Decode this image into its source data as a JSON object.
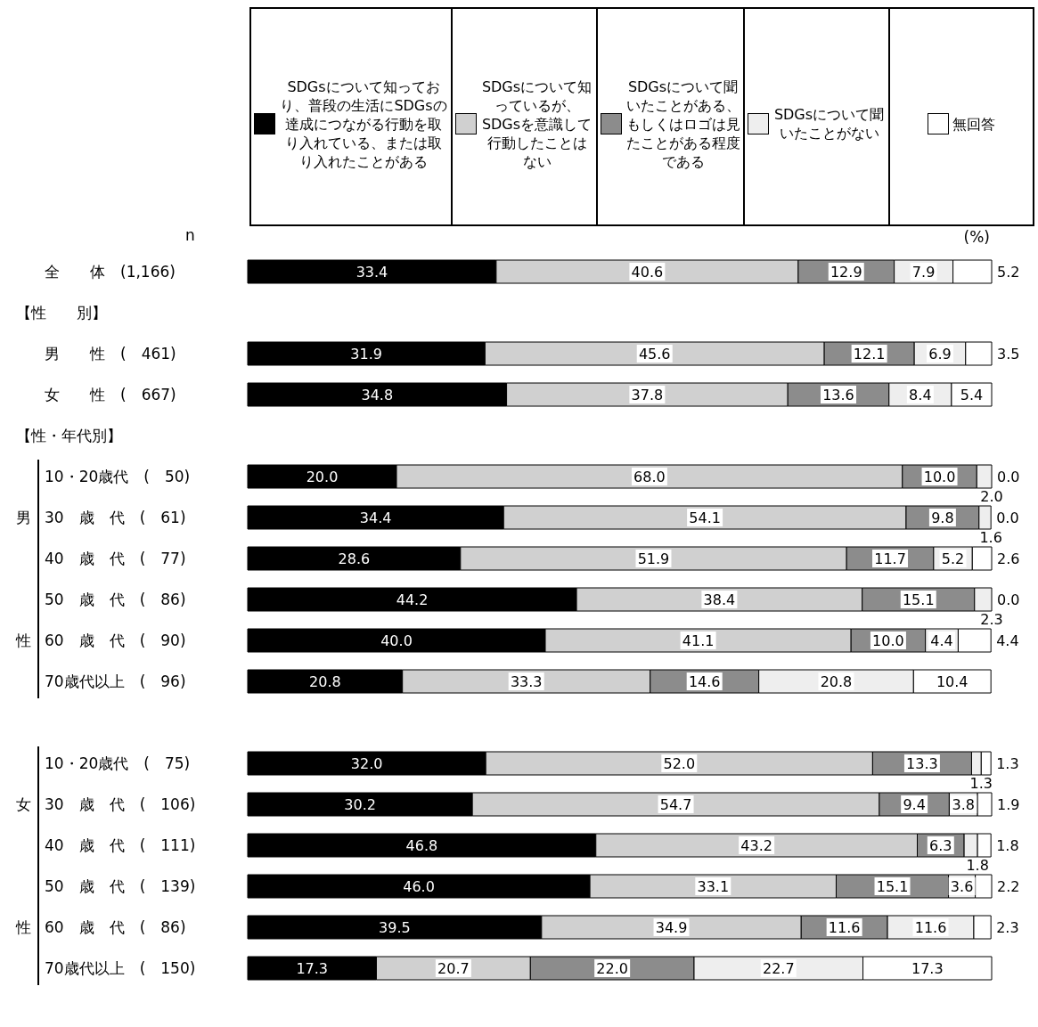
{
  "chart_data": {
    "type": "bar",
    "orientation": "horizontal",
    "stacked": true,
    "legend": "top",
    "categories": [
      "全　　体　(1,166)",
      null,
      "男　　性　(　461)",
      "女　　性　(　667)",
      null,
      "10・20歳代　(　50)",
      "30　歳　代　(　61)",
      "40　歳　代　(　77)",
      "50　歳　代　(　86)",
      "60　歳　代　(　90)",
      "70歳代以上　(　96)",
      null,
      "10・20歳代　(　75)",
      "30　歳　代　(　106)",
      "40　歳　代　(　111)",
      "50　歳　代　(　139)",
      "60　歳　代　(　86)",
      "70歳代以上　(　150)"
    ],
    "series": [
      {
        "name": "SDGsについて知っており、普段の生活にSDGsの達成につながる行動を取り入れている、または取り入れたことがある",
        "color": "#000000",
        "values": [
          33.4,
          null,
          31.9,
          34.8,
          null,
          20.0,
          34.4,
          28.6,
          44.2,
          40.0,
          20.8,
          null,
          32.0,
          30.2,
          46.8,
          46.0,
          39.5,
          17.3
        ],
        "value_labels": [
          "33.4",
          null,
          "31.9",
          "34.8",
          null,
          "20.0",
          "34.4",
          "28.6",
          "44.2",
          "40.0",
          "20.8",
          null,
          "32.0",
          "30.2",
          "46.8",
          "46.0",
          "39.5",
          "17.3"
        ]
      },
      {
        "name": "SDGsについて知っているが、SDGsを意識して行動したことはない",
        "color": "#d0d0d0",
        "values": [
          40.6,
          null,
          45.6,
          37.8,
          null,
          68.0,
          54.1,
          51.9,
          38.4,
          41.1,
          33.3,
          null,
          52.0,
          54.7,
          43.2,
          33.1,
          34.9,
          20.7
        ],
        "value_labels": [
          "40.6",
          null,
          "45.6",
          "37.8",
          null,
          "68.0",
          "54.1",
          "51.9",
          "38.4",
          "41.1",
          "33.3",
          null,
          "52.0",
          "54.7",
          "43.2",
          "33.1",
          "34.9",
          "20.7"
        ]
      },
      {
        "name": "SDGsについて聞いたことがある、もしくはロゴは見たことがある程度である",
        "color": "#8c8c8c",
        "values": [
          12.9,
          null,
          12.1,
          13.6,
          null,
          10.0,
          9.8,
          11.7,
          15.1,
          10.0,
          14.6,
          null,
          13.3,
          9.4,
          6.3,
          15.1,
          11.6,
          22.0
        ],
        "value_labels": [
          "12.9",
          null,
          "12.1",
          "13.6",
          null,
          "10.0",
          "9.8",
          "11.7",
          "15.1",
          "10.0",
          "14.6",
          null,
          "13.3",
          "9.4",
          "6.3",
          "15.1",
          "11.6",
          "22.0"
        ]
      },
      {
        "name": "SDGsについて聞いたことがない",
        "color": "#eeeeee",
        "values": [
          7.9,
          null,
          6.9,
          8.4,
          null,
          2.0,
          1.6,
          5.2,
          2.3,
          4.4,
          20.8,
          null,
          1.3,
          3.8,
          1.8,
          3.6,
          11.6,
          22.7
        ],
        "value_labels": [
          "7.9",
          null,
          "6.9",
          "8.4",
          null,
          "2.0",
          "1.6",
          "5.2",
          "2.3",
          "4.4",
          "20.8",
          null,
          "1.3",
          "3.8",
          "1.8",
          "3.6",
          "11.6",
          "22.7"
        ]
      },
      {
        "name": "無回答",
        "color": "#ffffff",
        "values": [
          5.2,
          null,
          3.5,
          5.4,
          null,
          0.0,
          0.0,
          2.6,
          0.0,
          4.4,
          10.4,
          null,
          1.3,
          1.9,
          1.8,
          2.2,
          2.3,
          17.3
        ],
        "value_labels": [
          "5.2",
          null,
          "3.5",
          "5.4",
          null,
          "0.0",
          "0.0",
          "2.6",
          "0.0",
          "4.4",
          "10.4",
          null,
          "1.3",
          "1.9",
          "1.8",
          "2.2",
          "2.3",
          "17.3"
        ]
      }
    ],
    "annotations": [
      "n",
      "(%)",
      "【性　　別】",
      "【性・年代別】",
      "男",
      "性",
      "女",
      "性"
    ]
  }
}
